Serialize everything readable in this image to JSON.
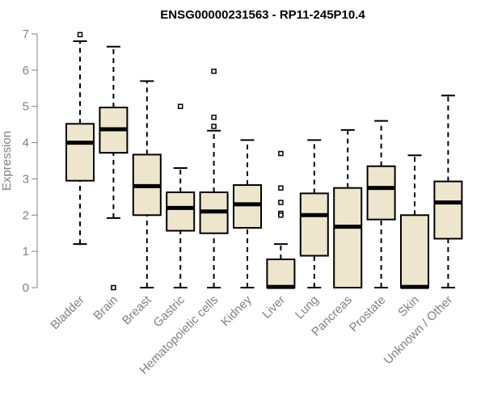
{
  "chart_data": {
    "type": "boxplot",
    "title": "ENSG00000231563 - RP11-245P10.4",
    "xlabel": "",
    "ylabel": "Expression",
    "ylim": [
      0,
      7
    ],
    "yticks": [
      0,
      1,
      2,
      3,
      4,
      5,
      6,
      7
    ],
    "box_color": "#ede6cc",
    "axis_color": "#808080",
    "categories": [
      "Bladder",
      "Brain",
      "Breast",
      "Gastric",
      "Hematopoietic cells",
      "Kidney",
      "Liver",
      "Lung",
      "Pancreas",
      "Prostate",
      "Skin",
      "Unknown / Other"
    ],
    "boxes": [
      {
        "name": "Bladder",
        "min": 1.2,
        "q1": 2.95,
        "median": 4.0,
        "q3": 4.52,
        "max": 6.8,
        "outliers": [
          6.98
        ]
      },
      {
        "name": "Brain",
        "min": 1.92,
        "q1": 3.72,
        "median": 4.37,
        "q3": 4.97,
        "max": 6.65,
        "outliers": [
          0.0
        ]
      },
      {
        "name": "Breast",
        "min": 0.0,
        "q1": 2.0,
        "median": 2.8,
        "q3": 3.67,
        "max": 5.7,
        "outliers": []
      },
      {
        "name": "Gastric",
        "min": 0.0,
        "q1": 1.57,
        "median": 2.2,
        "q3": 2.63,
        "max": 3.3,
        "outliers": [
          5.0
        ]
      },
      {
        "name": "Hematopoietic cells",
        "min": 0.0,
        "q1": 1.5,
        "median": 2.1,
        "q3": 2.63,
        "max": 4.33,
        "outliers": [
          5.97,
          4.7,
          4.45
        ]
      },
      {
        "name": "Kidney",
        "min": 0.0,
        "q1": 1.65,
        "median": 2.3,
        "q3": 2.83,
        "max": 4.07,
        "outliers": []
      },
      {
        "name": "Liver",
        "min": 0.0,
        "q1": 0.0,
        "median": 0.02,
        "q3": 0.78,
        "max": 1.2,
        "outliers": [
          3.7,
          2.75,
          2.35,
          2.05,
          2.0
        ]
      },
      {
        "name": "Lung",
        "min": 0.0,
        "q1": 0.88,
        "median": 2.0,
        "q3": 2.6,
        "max": 4.07,
        "outliers": []
      },
      {
        "name": "Pancreas",
        "min": 0.0,
        "q1": 0.0,
        "median": 1.68,
        "q3": 2.75,
        "max": 4.35,
        "outliers": []
      },
      {
        "name": "Prostate",
        "min": 0.0,
        "q1": 1.88,
        "median": 2.75,
        "q3": 3.35,
        "max": 4.6,
        "outliers": []
      },
      {
        "name": "Skin",
        "min": 0.0,
        "q1": 0.0,
        "median": 0.02,
        "q3": 2.0,
        "max": 3.65,
        "outliers": []
      },
      {
        "name": "Unknown / Other",
        "min": 0.0,
        "q1": 1.35,
        "median": 2.35,
        "q3": 2.93,
        "max": 5.3,
        "outliers": []
      }
    ]
  }
}
